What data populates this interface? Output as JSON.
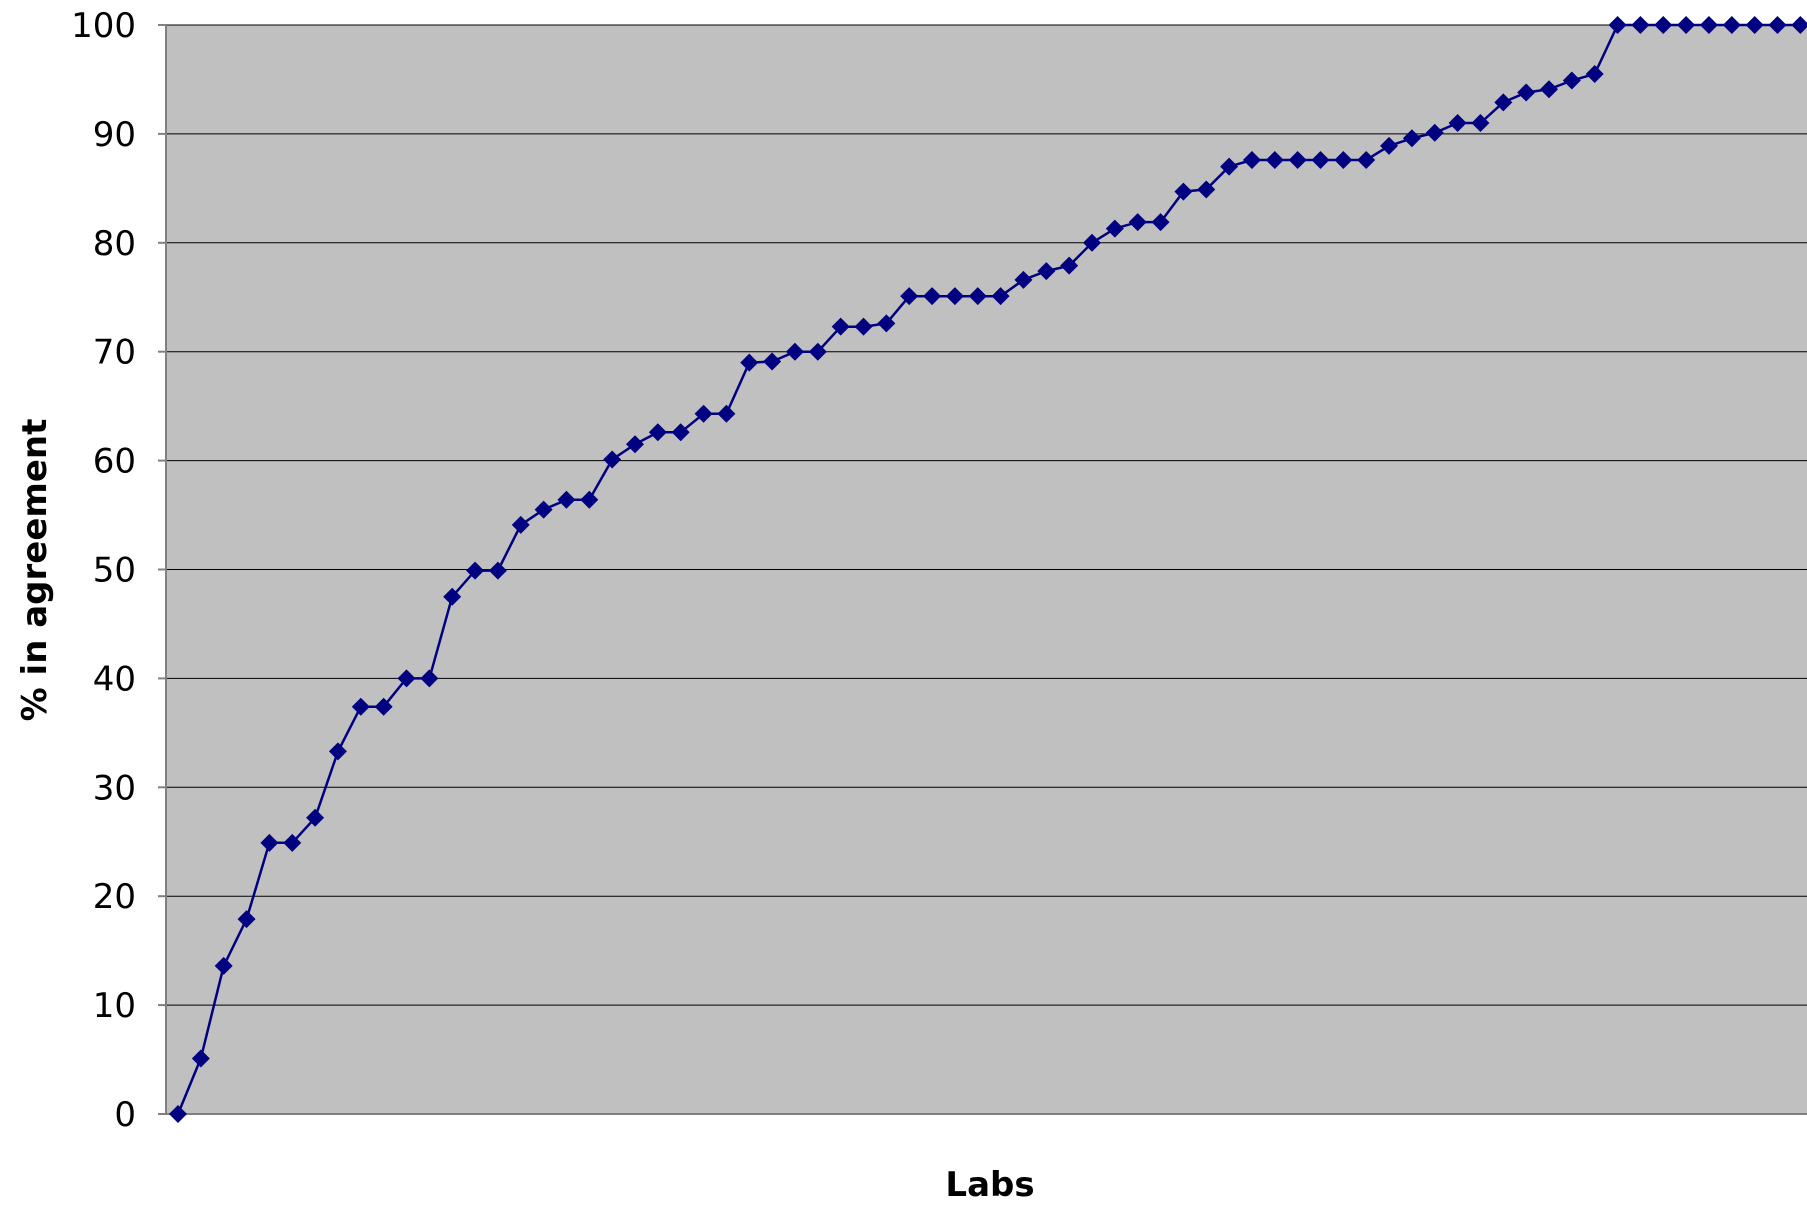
{
  "chart_data": {
    "type": "line",
    "title": "",
    "xlabel": "Labs",
    "ylabel": "% in agreement",
    "ylim": [
      0,
      100
    ],
    "yticks": [
      0,
      10,
      20,
      30,
      40,
      50,
      60,
      70,
      80,
      90,
      100
    ],
    "grid": true,
    "plot_background": "#c0c0c0",
    "line_color": "#000080",
    "marker": "diamond",
    "series": [
      {
        "values": [
          0,
          5.1,
          13.6,
          17.9,
          24.9,
          24.9,
          27.2,
          33.3,
          37.4,
          37.4,
          40,
          40,
          47.5,
          49.9,
          49.9,
          54.1,
          55.5,
          56.4,
          56.4,
          60.1,
          61.5,
          62.6,
          62.6,
          64.3,
          64.3,
          69,
          69.1,
          70,
          70,
          72.3,
          72.3,
          72.6,
          75.1,
          75.1,
          75.1,
          75.1,
          75.1,
          76.6,
          77.4,
          77.9,
          80,
          81.3,
          81.9,
          81.9,
          84.7,
          84.9,
          87,
          87.6,
          87.6,
          87.6,
          87.6,
          87.6,
          87.6,
          88.9,
          89.6,
          90.1,
          91,
          91,
          92.9,
          93.8,
          94.1,
          94.9,
          95.5,
          100,
          100,
          100,
          100,
          100,
          100,
          100,
          100,
          100
        ]
      }
    ]
  }
}
